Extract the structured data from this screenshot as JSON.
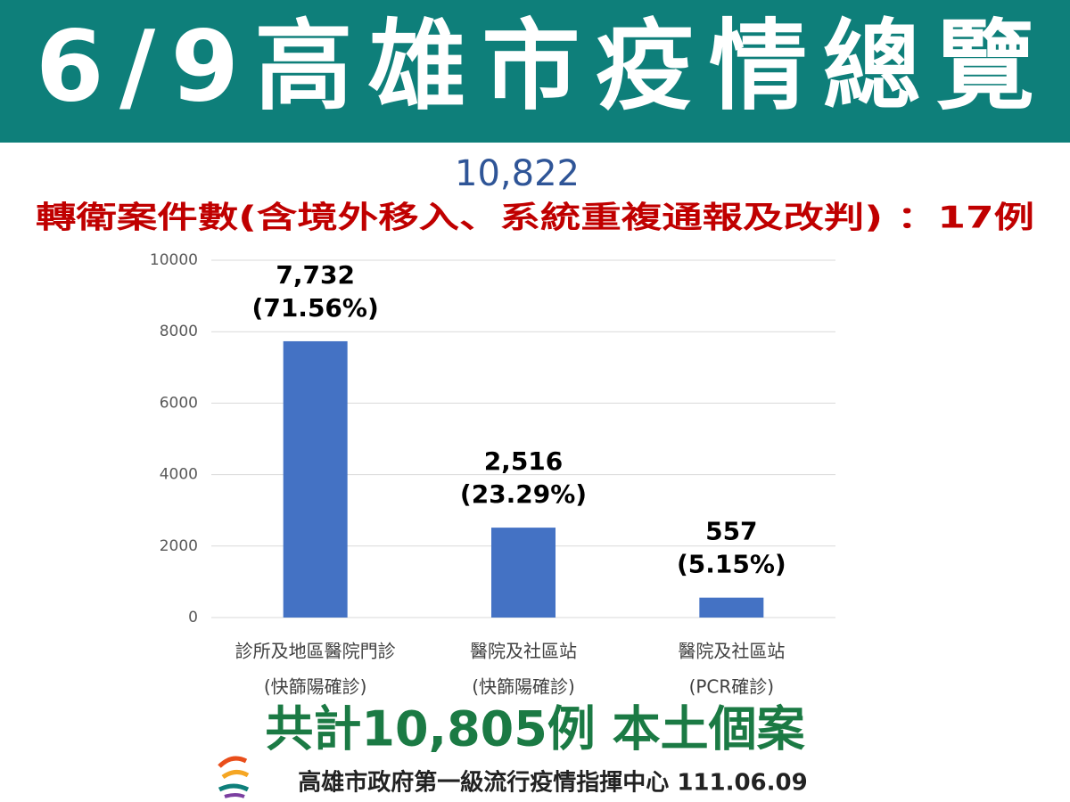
{
  "header": {
    "title": "6/9高雄市疫情總覽"
  },
  "total": "10,822",
  "note": "轉衛案件數(含境外移入、系統重複通報及改判) ：17例",
  "chart_data": {
    "type": "bar",
    "categories": [
      [
        "診所及地區醫院門診",
        "(快篩陽確診)"
      ],
      [
        "醫院及社區站",
        "(快篩陽確診)"
      ],
      [
        "醫院及社區站",
        "(PCR確診)"
      ]
    ],
    "values": [
      7732,
      2516,
      557
    ],
    "value_labels": [
      "7,732",
      "2,516",
      "557"
    ],
    "percent_labels": [
      "(71.56%)",
      "(23.29%)",
      "(5.15%)"
    ],
    "color": "#4472c4",
    "ylim": [
      0,
      10000
    ],
    "yticks": [
      0,
      2000,
      4000,
      6000,
      8000,
      10000
    ],
    "grid": true
  },
  "summary": "共計10,805例 本土個案",
  "source": "高雄市政府第一級流行疫情指揮中心 111.06.09"
}
